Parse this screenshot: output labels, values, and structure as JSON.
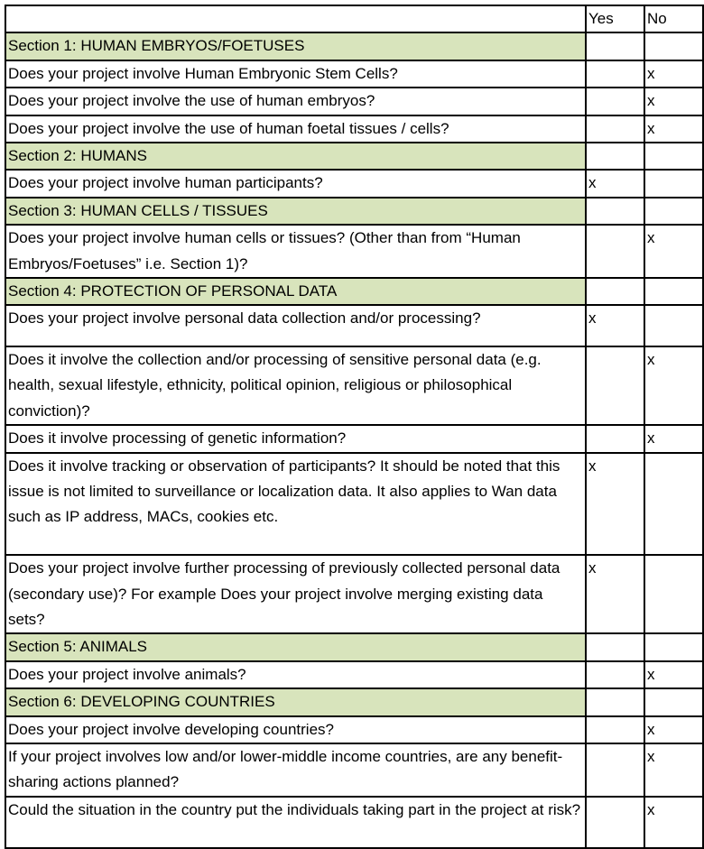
{
  "header": {
    "yes": "Yes",
    "no": "No"
  },
  "rows": [
    {
      "type": "section",
      "text": "Section 1: HUMAN EMBRYOS/FOETUSES"
    },
    {
      "type": "q",
      "text": "Does your project involve Human Embryonic Stem Cells?",
      "yes": "",
      "no": "x",
      "lines": 1
    },
    {
      "type": "q",
      "text": "Does your project involve the use of human embryos?",
      "yes": "",
      "no": "x",
      "lines": 1
    },
    {
      "type": "q",
      "text": "Does your project involve the use of human foetal tissues / cells?",
      "yes": "",
      "no": "x",
      "lines": 1
    },
    {
      "type": "section",
      "text": "Section 2: HUMANS"
    },
    {
      "type": "q",
      "text": "Does your project involve human participants?",
      "yes": "x",
      "no": "",
      "lines": 1
    },
    {
      "type": "section",
      "text": "Section 3: HUMAN CELLS / TISSUES"
    },
    {
      "type": "q",
      "text": "Does your project involve human cells or tissues? (Other than from “Human Embryos/Foetuses” i.e. Section 1)?",
      "yes": "",
      "no": "x",
      "lines": 2
    },
    {
      "type": "section",
      "text": "Section 4: PROTECTION OF PERSONAL DATA"
    },
    {
      "type": "q",
      "text": "Does your project involve personal data collection and/or processing?",
      "yes": "x",
      "no": "",
      "lines": 1.6
    },
    {
      "type": "q",
      "text": "Does it involve the collection and/or processing of sensitive personal data (e.g. health, sexual lifestyle, ethnicity, political opinion, religious or philosophical conviction)?",
      "yes": "",
      "no": "x",
      "lines": 3
    },
    {
      "type": "q",
      "text": "Does it involve processing of genetic information?",
      "yes": "",
      "no": "x",
      "lines": 1
    },
    {
      "type": "q",
      "text": "Does it involve tracking or observation of participants? It should be noted that this issue is not limited to surveillance or localization data. It also applies to Wan data such as IP address, MACs, cookies etc.",
      "yes": "x",
      "no": "",
      "lines": 4
    },
    {
      "type": "q",
      "text": "Does your project involve further processing of previously collected personal data (secondary use)? For example Does your project involve merging existing data sets?",
      "yes": "x",
      "no": "",
      "lines": 3
    },
    {
      "type": "section",
      "text": "Section 5: ANIMALS"
    },
    {
      "type": "q",
      "text": "Does your project involve animals?",
      "yes": "",
      "no": "x",
      "lines": 1
    },
    {
      "type": "section",
      "text": "Section 6: DEVELOPING COUNTRIES"
    },
    {
      "type": "q",
      "text": "Does your project involve developing countries?",
      "yes": "",
      "no": "x",
      "lines": 1
    },
    {
      "type": "q",
      "text": "If your project involves low and/or lower-middle income countries, are any benefit-sharing actions planned?",
      "yes": "",
      "no": "x",
      "lines": 2
    },
    {
      "type": "q",
      "text": "Could the situation in the country put the individuals taking part in the project at risk?",
      "yes": "",
      "no": "x",
      "lines": 2
    }
  ]
}
